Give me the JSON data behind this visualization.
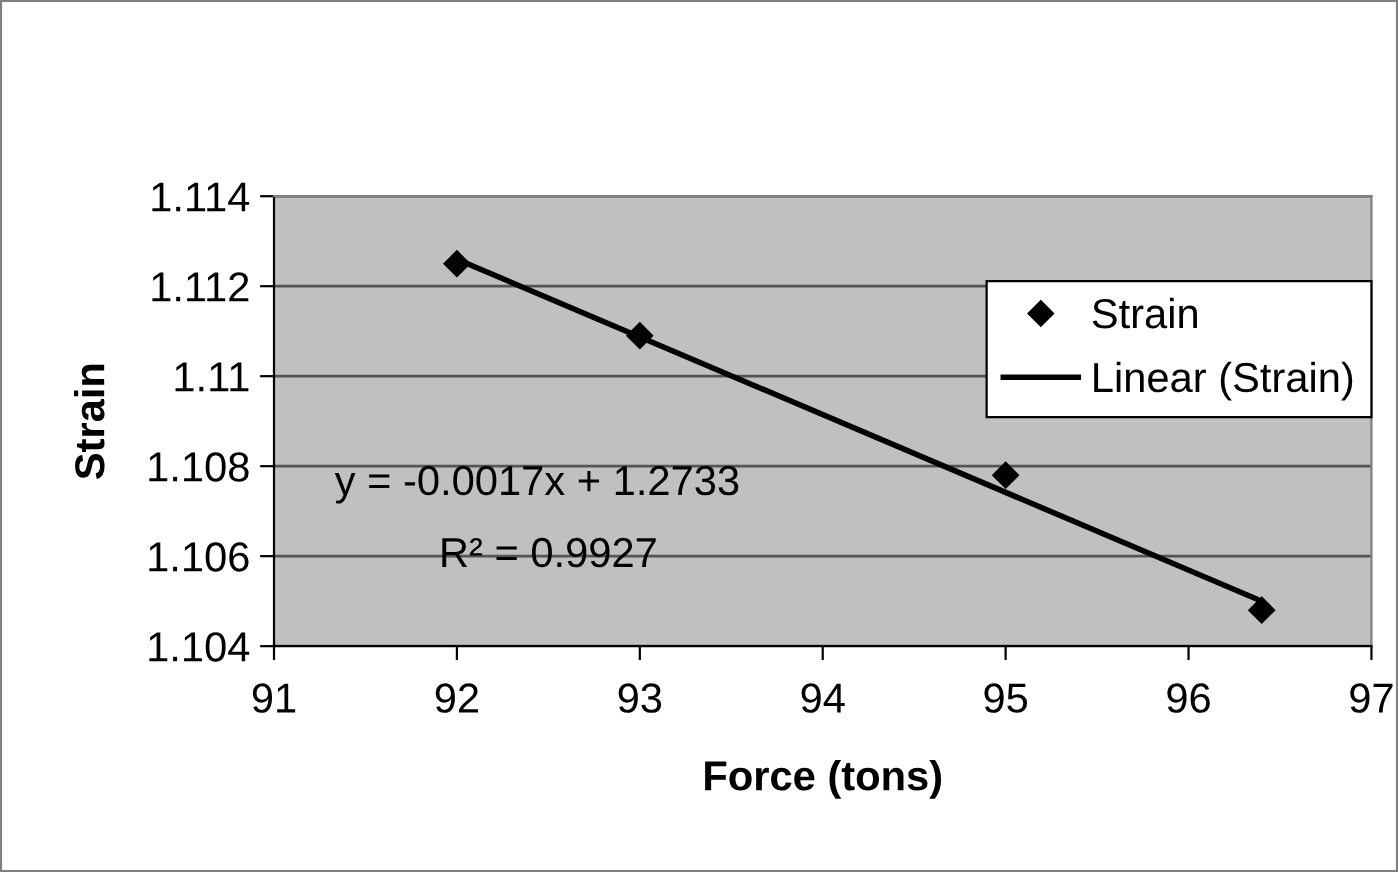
{
  "chart_data": {
    "type": "scatter",
    "xlabel": "Force (tons)",
    "ylabel": "Strain",
    "series": [
      {
        "name": "Strain",
        "color": "#000000",
        "marker": "diamond",
        "x": [
          92,
          93,
          95,
          96.4
        ],
        "values": [
          1.1125,
          1.1109,
          1.1078,
          1.1048
        ]
      },
      {
        "name": "Linear (Strain)",
        "type": "line",
        "color": "#000000",
        "marker": "none",
        "line_style": "solid",
        "x": [
          92,
          96.4
        ],
        "values": [
          1.1126,
          1.105
        ]
      }
    ],
    "xlim": [
      91,
      97
    ],
    "ylim": [
      1.104,
      1.114
    ],
    "xticks": [
      91,
      92,
      93,
      94,
      95,
      96,
      97
    ],
    "yticks": [
      1.104,
      1.106,
      1.108,
      1.11,
      1.112,
      1.114
    ],
    "grid": "y",
    "legend": "right",
    "annotations": [
      "y = -0.0017x + 1.2733",
      "R² = 0.9927"
    ]
  }
}
